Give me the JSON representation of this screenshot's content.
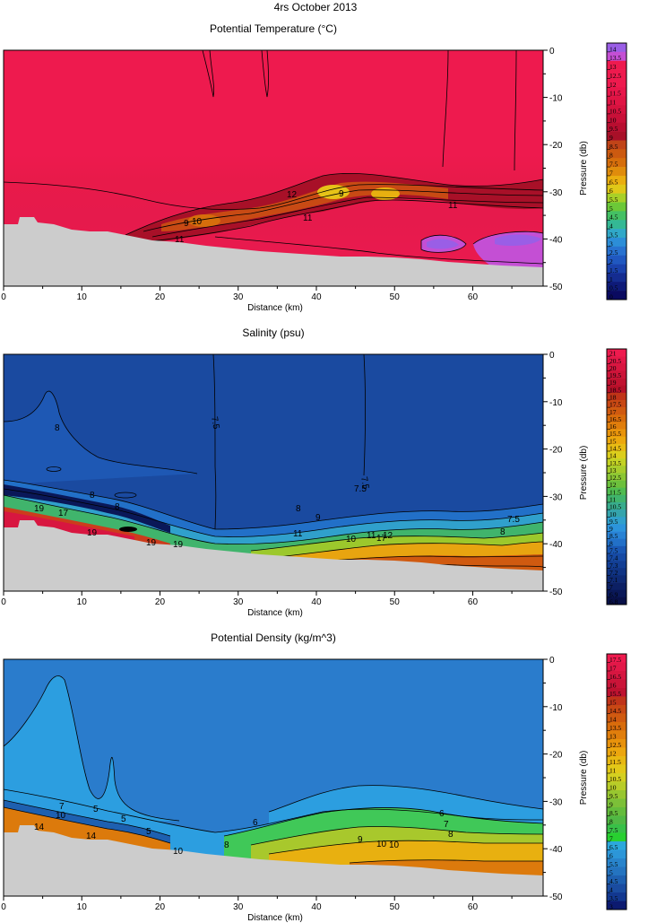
{
  "figure_title": "4rs October 2013",
  "chart_data": [
    {
      "type": "heatmap",
      "title": "Potential Temperature (°C)",
      "xlabel": "Distance (km)",
      "ylabel": "Pressure (db)",
      "xlim": [
        0,
        69
      ],
      "ylim": [
        -50,
        0
      ],
      "x_ticks": [
        "0",
        "10",
        "20",
        "30",
        "40",
        "50",
        "60"
      ],
      "y_ticks": [
        "0",
        "-10",
        "-20",
        "-30",
        "-40",
        "-50"
      ],
      "grid": false,
      "colorbar_levels": [
        "14",
        "13.5",
        "13",
        "12.5",
        "12",
        "11.5",
        "11",
        "10.5",
        "10",
        "9.5",
        "9",
        "8.5",
        "8",
        "7.5",
        "7",
        "6.5",
        "6",
        "5.5",
        "5",
        "4.5",
        "4",
        "3.5",
        "3",
        "2.5",
        "2",
        "1.5",
        "1",
        "0.5",
        "0"
      ],
      "colorbar_colors": [
        "#9a5ee6",
        "#c44fd4",
        "#ee1a4e",
        "#ee1a4e",
        "#ee1a4e",
        "#e8164a",
        "#e01444",
        "#d6123e",
        "#c81038",
        "#b80e30",
        "#a81028",
        "#c04418",
        "#cc5a10",
        "#d66e0c",
        "#e08c0c",
        "#eaae10",
        "#e0c818",
        "#a8d028",
        "#6cc838",
        "#44c064",
        "#34b894",
        "#30a8c8",
        "#2c8ed8",
        "#2872d0",
        "#2058c0",
        "#1a42ac",
        "#142c90",
        "#0e1a78",
        "#0a0a60"
      ],
      "contour_labels": [
        "9",
        "10",
        "11",
        "11",
        "12",
        "9",
        "11"
      ],
      "mask": "bottom"
    },
    {
      "type": "heatmap",
      "title": "Salinity (psu)",
      "xlabel": "Distance (km)",
      "ylabel": "Pressure (db)",
      "xlim": [
        0,
        69
      ],
      "ylim": [
        -50,
        0
      ],
      "x_ticks": [
        "0",
        "10",
        "20",
        "30",
        "40",
        "50",
        "60"
      ],
      "y_ticks": [
        "0",
        "-10",
        "-20",
        "-30",
        "-40",
        "-50"
      ],
      "grid": false,
      "colorbar_levels": [
        "21",
        "20.5",
        "20",
        "19.5",
        "19",
        "18.5",
        "18",
        "17.5",
        "17",
        "16.5",
        "16",
        "15.5",
        "15",
        "14.5",
        "14",
        "13.5",
        "13",
        "12.5",
        "12",
        "11.5",
        "11",
        "10.5",
        "10",
        "9.5",
        "9",
        "8.5",
        "8",
        "7.5",
        "7.4",
        "7.3",
        "7.2",
        "7.1",
        "7",
        "6.9",
        "6.8"
      ],
      "colorbar_colors": [
        "#ee1a4e",
        "#e41848",
        "#d81640",
        "#cc1438",
        "#c01230",
        "#b41028",
        "#c03418",
        "#c84814",
        "#d05a10",
        "#d86c0c",
        "#e07e0c",
        "#e8940c",
        "#eca80e",
        "#e8bc14",
        "#dcce1c",
        "#c4d224",
        "#a8cc2c",
        "#8cc634",
        "#6cc03c",
        "#50bc50",
        "#40b46c",
        "#38ac8c",
        "#34a4ac",
        "#30a0cc",
        "#2c94dc",
        "#2882d4",
        "#2270c8",
        "#1a58b4",
        "#164aa4",
        "#123e94",
        "#103484",
        "#0e2a74",
        "#0c2064",
        "#0a1858",
        "#081048"
      ],
      "contour_labels": [
        "8",
        "19",
        "17",
        "19",
        "19",
        "8",
        "7.5",
        "7.5",
        "8",
        "9",
        "11",
        "7.5",
        "8",
        "17",
        "19",
        "10",
        "11",
        "12",
        "7.5",
        "8"
      ],
      "mask": "bottom"
    },
    {
      "type": "heatmap",
      "title": "Potential Density (kg/m^3)",
      "xlabel": "Distance (km)",
      "ylabel": "Pressure (db)",
      "xlim": [
        0,
        69
      ],
      "ylim": [
        -50,
        0
      ],
      "x_ticks": [
        "0",
        "10",
        "20",
        "30",
        "40",
        "50",
        "60"
      ],
      "y_ticks": [
        "0",
        "-10",
        "-20",
        "-30",
        "-40",
        "-50"
      ],
      "grid": false,
      "colorbar_levels": [
        "17.5",
        "17",
        "16.5",
        "16",
        "15.5",
        "15",
        "14.5",
        "14",
        "13.5",
        "13",
        "12.5",
        "12",
        "11.5",
        "11",
        "10.5",
        "10",
        "9.5",
        "9",
        "8.5",
        "8",
        "7.5",
        "7",
        "6.5",
        "6",
        "5.5",
        "5",
        "4.5",
        "4",
        "3.5",
        "3"
      ],
      "colorbar_colors": [
        "#ee1a4e",
        "#e21848",
        "#d61640",
        "#ca1438",
        "#be1230",
        "#c0341a",
        "#c84814",
        "#d05a10",
        "#d86c0c",
        "#e07e0c",
        "#e8920c",
        "#eca60e",
        "#e8b812",
        "#e2c818",
        "#d4d020",
        "#b8cc28",
        "#98c630",
        "#7cc038",
        "#64bc3c",
        "#50b844",
        "#38c048",
        "#28d030",
        "#2ca8dc",
        "#2c96d8",
        "#2884cc",
        "#2474c0",
        "#1e60b0",
        "#1a4ca0",
        "#123890",
        "#0c1a70"
      ],
      "contour_labels": [
        "7",
        "10",
        "14",
        "14",
        "5",
        "5",
        "5",
        "10",
        "6",
        "8",
        "9",
        "10",
        "6",
        "7",
        "8",
        "10"
      ],
      "mask": "bottom"
    }
  ]
}
